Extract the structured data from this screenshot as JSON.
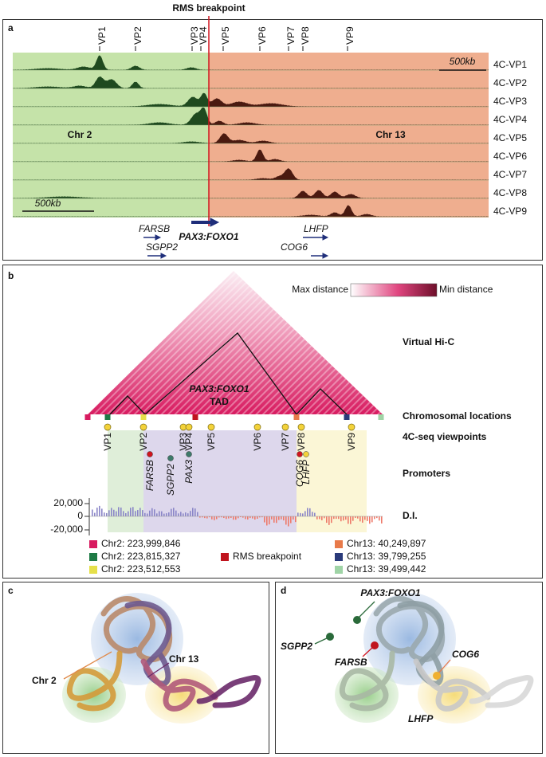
{
  "panel_a": {
    "label": "a",
    "breakpoint": "RMS breakpoint",
    "viewpoints": [
      "VP1",
      "VP2",
      "VP3",
      "VP4",
      "VP5",
      "VP6",
      "VP7",
      "VP8",
      "VP9"
    ],
    "tracks": [
      "4C-VP1",
      "4C-VP2",
      "4C-VP3",
      "4C-VP4",
      "4C-VP5",
      "4C-VP6",
      "4C-VP7",
      "4C-VP8",
      "4C-VP9"
    ],
    "chr_left": "Chr 2",
    "chr_right": "Chr 13",
    "scale_top": "500kb",
    "scale_bottom": "500kb",
    "genes": [
      "FARSB",
      "SGPP2",
      "PAX3:FOXO1",
      "LHFP",
      "COG6"
    ]
  },
  "panel_b": {
    "label": "b",
    "colorbar_left": "Max distance",
    "colorbar_right": "Min distance",
    "tad": [
      "PAX3:FOXO1",
      "TAD"
    ],
    "rows": [
      "Virtual Hi-C",
      "Chromosomal locations",
      "4C-seq viewpoints",
      "Promoters",
      "D.I."
    ],
    "viewpoints": [
      "VP1",
      "VP2",
      "VP3",
      "VP4",
      "VP5",
      "VP6",
      "VP7",
      "VP8",
      "VP9"
    ],
    "promoters": [
      "FARSB",
      "SGPP2",
      "PAX3",
      "COG6",
      "LHFP"
    ],
    "di_ticks": [
      "20,000",
      "0",
      "-20,000"
    ],
    "legend": [
      {
        "label": "Chr2: 223,999,846",
        "color": "#d81b60"
      },
      {
        "label": "Chr2: 223,815,327",
        "color": "#1e7a45"
      },
      {
        "label": "Chr2: 223,512,553",
        "color": "#e6e04a"
      },
      {
        "label": "RMS breakpoint",
        "color": "#c0141e"
      },
      {
        "label": "Chr13: 40,249,897",
        "color": "#e87a4a"
      },
      {
        "label": "Chr13: 39,799,255",
        "color": "#2a3a7a"
      },
      {
        "label": "Chr13: 39,499,442",
        "color": "#9fd4a6"
      }
    ]
  },
  "panel_c": {
    "label": "c",
    "chr2": "Chr 2",
    "chr13": "Chr 13"
  },
  "panel_d": {
    "label": "d",
    "genes": [
      "PAX3:FOXO1",
      "SGPP2",
      "FARSB",
      "COG6",
      "LHFP"
    ]
  }
}
